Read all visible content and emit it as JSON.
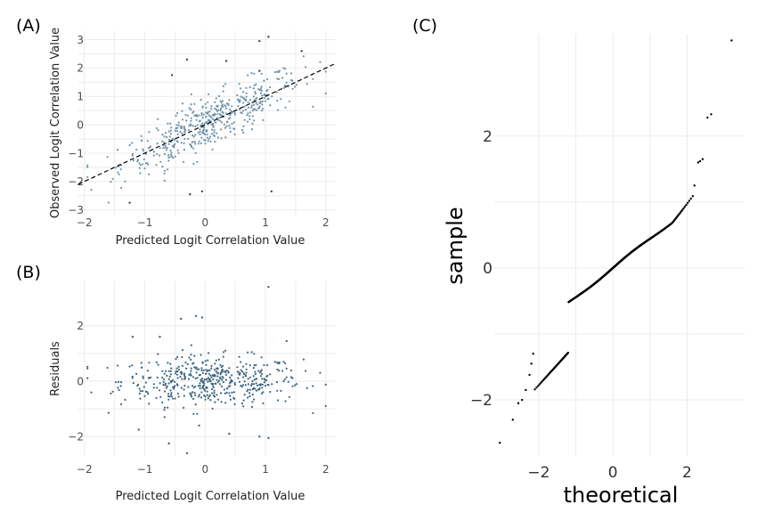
{
  "chart_data": [
    {
      "type": "scatter",
      "panel_label": "(A)",
      "xlabel": "Predicted Logit Correlation Value",
      "ylabel": "Observed Logit Correlation Value",
      "xlim": [
        -2.1,
        2.15
      ],
      "ylim": [
        -3.2,
        3.3
      ],
      "xticks": [
        -2,
        -1,
        0,
        1,
        2
      ],
      "yticks": [
        -3,
        -2,
        -1,
        0,
        1,
        2,
        3
      ],
      "grid": true,
      "point_color": "#6f93aa",
      "outlier_color": "#34495e",
      "reference_line": {
        "type": "identity",
        "style": "dashed",
        "color": "#000000"
      },
      "n_points": 480,
      "residual_sd": 0.45,
      "outliers": [
        [
          -0.3,
          2.3
        ],
        [
          0.35,
          2.25
        ],
        [
          0.9,
          2.95
        ],
        [
          1.05,
          3.1
        ],
        [
          1.1,
          -2.35
        ],
        [
          -0.05,
          -2.35
        ],
        [
          -0.25,
          -2.45
        ],
        [
          -1.25,
          -2.75
        ],
        [
          -0.55,
          1.75
        ],
        [
          0.9,
          1.9
        ],
        [
          1.6,
          2.6
        ]
      ]
    },
    {
      "type": "scatter",
      "panel_label": "(B)",
      "xlabel": "Predicted Logit Correlation Value",
      "ylabel": "Residuals",
      "xlim": [
        -2.1,
        2.15
      ],
      "ylim": [
        -2.7,
        3.6
      ],
      "xticks": [
        -2,
        -1,
        0,
        1,
        2
      ],
      "yticks": [
        -2,
        0,
        2
      ],
      "grid": true,
      "point_color": "#3f6680",
      "n_points": 480,
      "outliers": [
        [
          1.05,
          3.4
        ],
        [
          -0.15,
          2.35
        ],
        [
          -0.05,
          2.3
        ],
        [
          -0.4,
          2.25
        ],
        [
          -1.2,
          1.6
        ],
        [
          -0.75,
          1.6
        ],
        [
          1.35,
          1.45
        ],
        [
          -1.1,
          -1.75
        ],
        [
          -0.6,
          -2.25
        ],
        [
          -0.3,
          -2.6
        ],
        [
          0.4,
          -1.9
        ],
        [
          0.9,
          -2.0
        ],
        [
          1.05,
          -2.05
        ],
        [
          -0.1,
          -1.6
        ]
      ]
    },
    {
      "type": "scatter",
      "panel_label": "(C)",
      "xlabel": "theoretical",
      "ylabel": "sample",
      "xlim": [
        -3.2,
        3.55
      ],
      "ylim": [
        -2.85,
        3.55
      ],
      "xticks": [
        -2,
        0,
        2
      ],
      "yticks": [
        -2,
        0,
        2
      ],
      "grid": true,
      "point_color": "#000000",
      "n_points": 480,
      "upper_tail": [
        [
          2.2,
          1.25
        ],
        [
          2.3,
          1.6
        ],
        [
          2.35,
          1.62
        ],
        [
          2.42,
          1.65
        ],
        [
          2.55,
          2.28
        ],
        [
          2.65,
          2.33
        ],
        [
          3.2,
          3.45
        ]
      ],
      "lower_tail": [
        [
          -3.05,
          -2.65
        ],
        [
          -2.7,
          -2.3
        ],
        [
          -2.55,
          -2.05
        ],
        [
          -2.45,
          -2.0
        ],
        [
          -2.35,
          -1.85
        ],
        [
          -2.25,
          -1.62
        ],
        [
          -2.2,
          -1.45
        ],
        [
          -2.15,
          -1.3
        ]
      ]
    }
  ]
}
